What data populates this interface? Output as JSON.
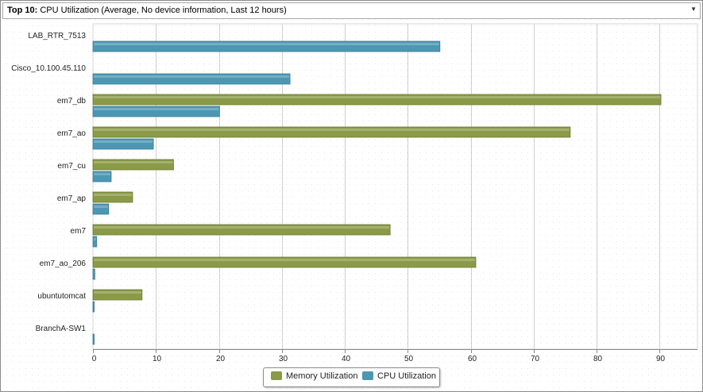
{
  "header": {
    "prefix": "Top 10:",
    "title": "CPU Utilization (Average, No device information, Last 12 hours)"
  },
  "colors": {
    "memory": "#8a9a47",
    "cpu": "#4d97b3",
    "grid": "#cfcfcf",
    "axis": "#888888"
  },
  "chart_data": {
    "type": "bar",
    "orientation": "horizontal",
    "categories": [
      "LAB_RTR_7513",
      "Cisco_10.100.45.110",
      "em7_db",
      "em7_ao",
      "em7_cu",
      "em7_ap",
      "em7",
      "em7_ao_206",
      "ubuntutomcat",
      "BranchA-SW1"
    ],
    "series": [
      {
        "name": "Memory Utilization",
        "values": [
          0,
          0,
          90.2,
          75.8,
          12.8,
          6.3,
          47.2,
          60.8,
          7.8,
          0
        ]
      },
      {
        "name": "CPU Utilization",
        "values": [
          55.1,
          31.3,
          20.1,
          9.6,
          2.9,
          2.5,
          0.6,
          0.3,
          0.2,
          0.2
        ]
      }
    ],
    "xticks": [
      0,
      10,
      20,
      30,
      40,
      50,
      60,
      70,
      80,
      90
    ],
    "xlim": [
      0,
      96
    ],
    "grid": true,
    "legend": "bottom-center"
  }
}
